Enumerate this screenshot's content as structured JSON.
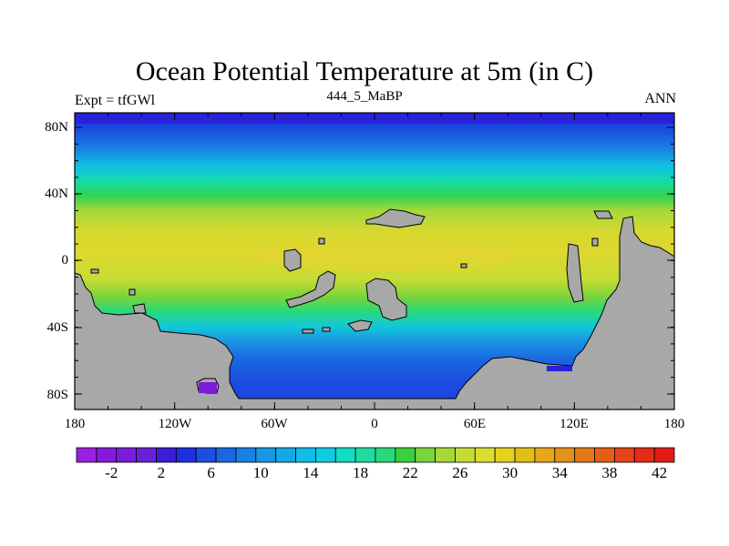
{
  "map": {
    "title": "Ocean Potential Temperature at 5m (in C)",
    "left_string": "Expt = tfGWl",
    "center_string": "444_5_MaBP",
    "right_string": "ANN",
    "lat_labels": [
      "80N",
      "40N",
      "0",
      "40S",
      "80S"
    ],
    "lon_labels": [
      "180",
      "120W",
      "60W",
      "0",
      "60E",
      "120E",
      "180"
    ],
    "colorbar": {
      "labels": [
        "-2",
        "2",
        "6",
        "10",
        "14",
        "18",
        "22",
        "26",
        "30",
        "34",
        "38",
        "42"
      ],
      "colors": [
        "#9b1fe0",
        "#8719dc",
        "#7a1cd9",
        "#6a20d6",
        "#3a1ed8",
        "#1f2fe0",
        "#1a4fe0",
        "#1a68e0",
        "#1a80e2",
        "#1996e4",
        "#15a8e4",
        "#11bce6",
        "#10cce0",
        "#12dcc4",
        "#1edca0",
        "#2ad87c",
        "#38d040",
        "#7ad43a",
        "#a6d83a",
        "#c6dc36",
        "#dcdc2e",
        "#e4d21e",
        "#e4be18",
        "#e4a818",
        "#e49218",
        "#e47818",
        "#e45e18",
        "#e44418",
        "#e42c18",
        "#e41a18"
      ]
    },
    "land_color": "#a8a8a8"
  }
}
